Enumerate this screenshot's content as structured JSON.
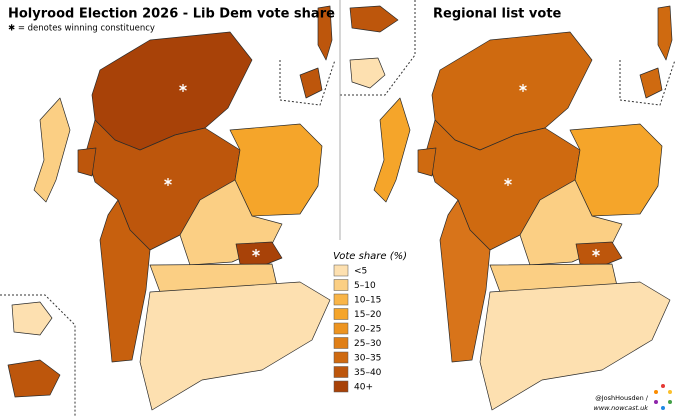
{
  "left_map": {
    "title": "Holyrood Election 2026 - Lib Dem vote share",
    "note": "✱ = denotes winning constituency"
  },
  "right_map": {
    "title": "Regional list vote"
  },
  "legend": {
    "title": "Vote share (%)",
    "items": [
      {
        "label": "<5",
        "color": "#fde0b0"
      },
      {
        "label": "5–10",
        "color": "#fbcf84"
      },
      {
        "label": "10–15",
        "color": "#f9b548"
      },
      {
        "label": "15–20",
        "color": "#f5a52a"
      },
      {
        "label": "20–25",
        "color": "#ed9420"
      },
      {
        "label": "25–30",
        "color": "#e07f16"
      },
      {
        "label": "30–35",
        "color": "#cf6a10"
      },
      {
        "label": "35–40",
        "color": "#bd560c"
      },
      {
        "label": "40+",
        "color": "#a84208"
      }
    ]
  },
  "credits": [
    "@JoshHousden /",
    "www.nowcast.uk"
  ]
}
